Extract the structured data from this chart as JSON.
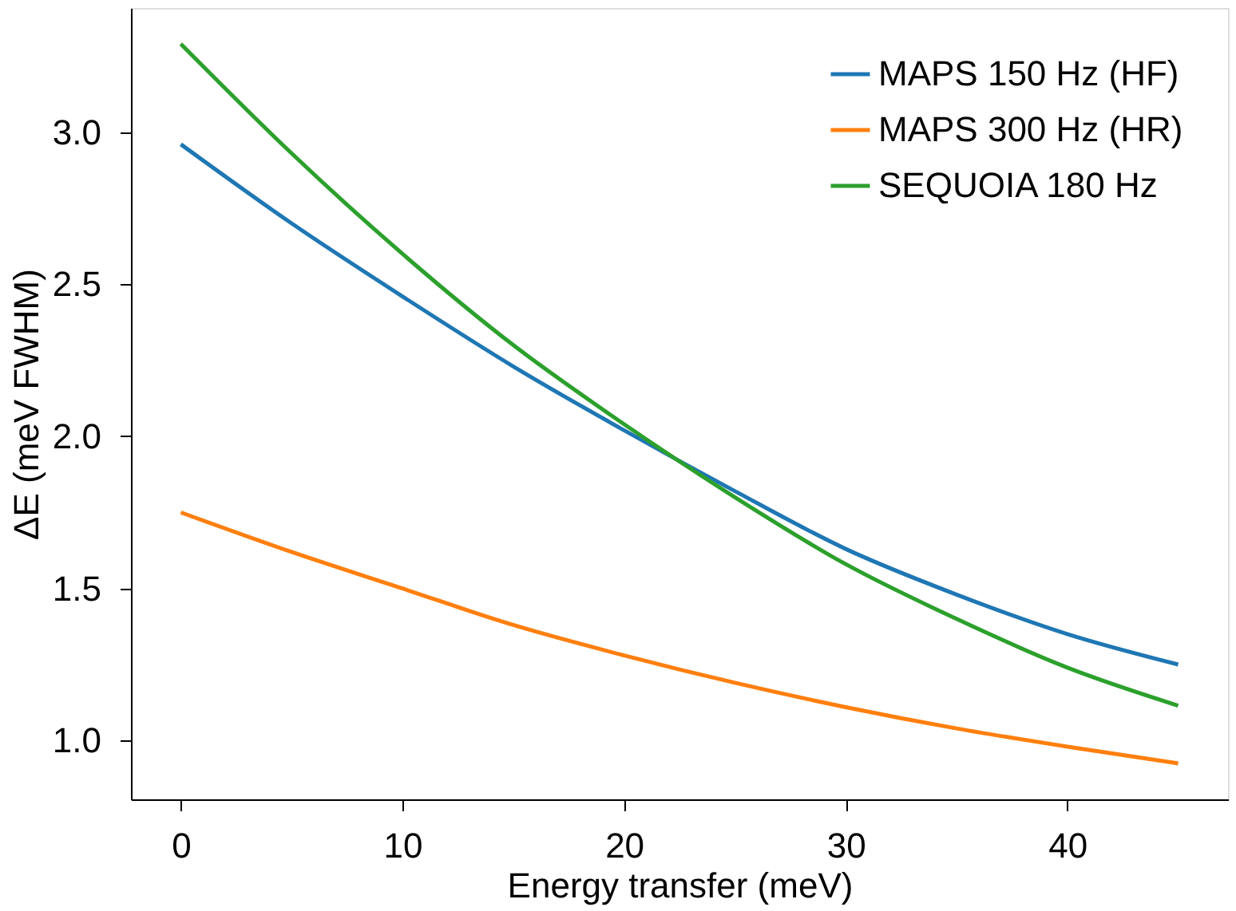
{
  "chart_data": {
    "type": "line",
    "xlabel": "Energy transfer (meV)",
    "ylabel": "ΔE (meV FWHM)",
    "x": [
      0,
      5,
      10,
      15,
      20,
      25,
      30,
      35,
      40,
      45
    ],
    "series": [
      {
        "name": "MAPS 150 Hz (HF)",
        "color": "#1f77b4",
        "values": [
          2.96,
          2.7,
          2.46,
          2.23,
          2.02,
          1.82,
          1.63,
          1.48,
          1.35,
          1.25
        ]
      },
      {
        "name": "MAPS 300 Hz (HR)",
        "color": "#ff7f0e",
        "values": [
          1.75,
          1.62,
          1.5,
          1.38,
          1.28,
          1.19,
          1.11,
          1.04,
          0.98,
          0.925
        ]
      },
      {
        "name": "SEQUOIA 180 Hz",
        "color": "#2ca02c",
        "values": [
          3.29,
          2.93,
          2.6,
          2.3,
          2.04,
          1.8,
          1.58,
          1.4,
          1.24,
          1.115
        ]
      }
    ],
    "xlim": [
      -2.25,
      47.25
    ],
    "xticks": [
      0,
      10,
      20,
      30,
      40
    ],
    "ylim": [
      0.807,
      3.408
    ],
    "yticks": [
      {
        "value": 1,
        "label": "1.0"
      },
      1.5,
      {
        "value": 2,
        "label": "2.0"
      },
      2.5,
      {
        "value": 3,
        "label": "3.0"
      }
    ],
    "grid": false,
    "legend": "top right",
    "line_style": "solid",
    "marker": "none"
  }
}
